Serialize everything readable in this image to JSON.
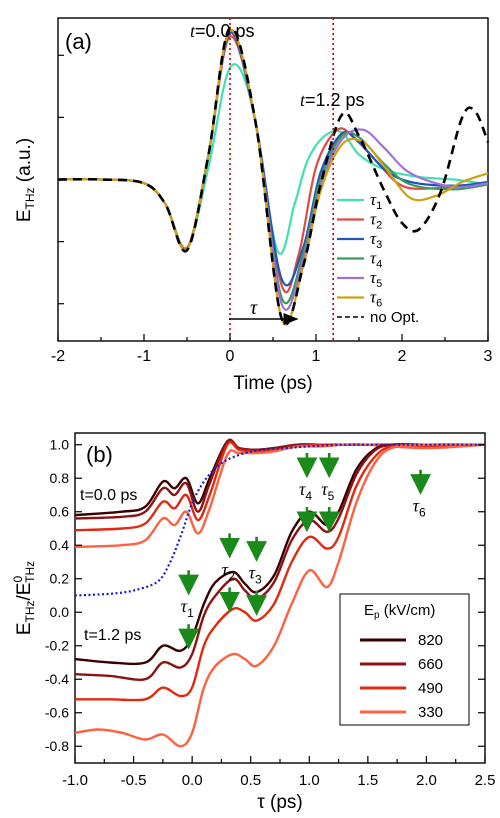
{
  "chart_data": [
    {
      "panel_label": "(a)",
      "type": "line",
      "ylabel_main": "E",
      "ylabel_sub": "THz",
      "ylabel_unit": " (a.u.)",
      "xlabel": "Time (ps)",
      "xlim": [
        -2,
        3
      ],
      "ylim": [
        -1.3,
        1.3
      ],
      "xticks": [
        "-2",
        "-1",
        "0",
        "1",
        "2",
        "3"
      ],
      "annotations": {
        "t0_prefix": "t",
        "t0_suffix": "=0.0 ps",
        "t1_prefix": "t",
        "t1_suffix": "=1.2 ps",
        "tau_arrow_label": "τ",
        "vlines": [
          0.0,
          1.2
        ]
      },
      "colors": {
        "tau1": "#40e0b0",
        "tau2": "#e04848",
        "tau3": "#2255b8",
        "tau4": "#3a9a5a",
        "tau5": "#a070d8",
        "tau6": "#d0a010",
        "noopt": "#000000",
        "vline": "#cc0000"
      },
      "legend": {
        "position": "right",
        "entries": [
          {
            "sym": "τ",
            "sub": "1",
            "color": "#40e0b0"
          },
          {
            "sym": "τ",
            "sub": "2",
            "color": "#e04848"
          },
          {
            "sym": "τ",
            "sub": "3",
            "color": "#2255b8"
          },
          {
            "sym": "τ",
            "sub": "4",
            "color": "#3a9a5a"
          },
          {
            "sym": "τ",
            "sub": "5",
            "color": "#a070d8"
          },
          {
            "sym": "τ",
            "sub": "6",
            "color": "#d0a010"
          },
          {
            "sym": "no Opt.",
            "sub": "",
            "color": "#000000",
            "dashed": true
          }
        ]
      },
      "series": [
        {
          "name": "τ1",
          "color": "#40e0b0",
          "x": [
            -2,
            -1.5,
            -1.0,
            -0.75,
            -0.5,
            -0.25,
            0.0,
            0.25,
            0.55,
            0.75,
            0.9,
            1.1,
            1.3,
            1.5,
            1.8,
            2.2,
            2.6,
            3.0
          ],
          "y": [
            0,
            0,
            -0.03,
            -0.2,
            -0.55,
            0.1,
            0.9,
            0.62,
            -0.57,
            -0.2,
            0.15,
            0.35,
            0.38,
            0.2,
            0.08,
            0.02,
            0.0,
            -0.04
          ]
        },
        {
          "name": "τ2",
          "color": "#e04848",
          "x": [
            -2,
            -1.5,
            -1.0,
            -0.75,
            -0.5,
            -0.25,
            0.0,
            0.3,
            0.6,
            0.8,
            1.0,
            1.25,
            1.45,
            1.7,
            2.0,
            2.4,
            3.0
          ],
          "y": [
            0,
            0,
            -0.03,
            -0.2,
            -0.55,
            0.2,
            1.15,
            0.45,
            -0.85,
            -0.6,
            0.1,
            0.4,
            0.33,
            0.15,
            -0.05,
            -0.07,
            -0.03
          ]
        },
        {
          "name": "τ3",
          "color": "#2255b8",
          "x": [
            -2,
            -1.5,
            -1.0,
            -0.75,
            -0.5,
            -0.25,
            0.0,
            0.3,
            0.6,
            0.85,
            1.05,
            1.3,
            1.5,
            1.8,
            2.1,
            2.6,
            3.0
          ],
          "y": [
            0,
            0,
            -0.03,
            -0.2,
            -0.56,
            0.2,
            1.18,
            0.45,
            -0.8,
            -0.55,
            0.05,
            0.37,
            0.3,
            0.08,
            -0.02,
            -0.05,
            -0.02
          ]
        },
        {
          "name": "τ4",
          "color": "#3a9a5a",
          "x": [
            -2,
            -1.5,
            -1.0,
            -0.75,
            -0.5,
            -0.25,
            0.0,
            0.3,
            0.6,
            0.85,
            1.05,
            1.3,
            1.5,
            1.8,
            2.1,
            2.6,
            3.0
          ],
          "y": [
            0,
            0,
            -0.03,
            -0.2,
            -0.56,
            0.2,
            1.2,
            0.45,
            -0.95,
            -0.6,
            0.0,
            0.35,
            0.34,
            0.12,
            -0.04,
            -0.08,
            -0.04
          ]
        },
        {
          "name": "τ5",
          "color": "#a070d8",
          "x": [
            -2,
            -1.5,
            -1.0,
            -0.75,
            -0.5,
            -0.25,
            0.0,
            0.3,
            0.6,
            0.85,
            1.05,
            1.3,
            1.55,
            1.8,
            2.1,
            2.6,
            3.0
          ],
          "y": [
            0,
            0,
            -0.03,
            -0.2,
            -0.56,
            0.2,
            1.2,
            0.45,
            -1.0,
            -0.65,
            -0.05,
            0.32,
            0.4,
            0.25,
            0.05,
            -0.06,
            -0.03
          ]
        },
        {
          "name": "τ6",
          "color": "#d0a010",
          "x": [
            -2,
            -1.5,
            -1.0,
            -0.75,
            -0.5,
            -0.25,
            0.0,
            0.3,
            0.6,
            0.85,
            1.05,
            1.3,
            1.55,
            1.8,
            2.1,
            2.4,
            2.7,
            3.0
          ],
          "y": [
            0,
            0,
            -0.03,
            -0.2,
            -0.56,
            0.2,
            1.2,
            0.45,
            -1.12,
            -0.7,
            -0.1,
            0.28,
            0.3,
            0.1,
            -0.15,
            -0.13,
            -0.02,
            0.05
          ]
        },
        {
          "name": "no Opt.",
          "color": "#000000",
          "dashed": true,
          "x": [
            -2,
            -1.5,
            -1.0,
            -0.75,
            -0.5,
            -0.25,
            0.0,
            0.3,
            0.6,
            0.85,
            1.05,
            1.3,
            1.5,
            1.8,
            2.0,
            2.2,
            2.45,
            2.7,
            2.85,
            3.0
          ],
          "y": [
            0,
            0,
            -0.03,
            -0.2,
            -0.57,
            0.2,
            1.22,
            0.45,
            -1.12,
            -0.7,
            -0.05,
            0.52,
            0.35,
            -0.1,
            -0.35,
            -0.4,
            -0.1,
            0.5,
            0.55,
            0.3
          ]
        }
      ]
    },
    {
      "panel_label": "(b)",
      "type": "line",
      "ylabel_main": "E",
      "ylabel_sub": "THz",
      "ylabel_sep": "/E",
      "ylabel_sup2": "0",
      "ylabel_sub2": "THz",
      "xlabel": "τ (ps)",
      "xlim": [
        -1.0,
        2.5
      ],
      "ylim": [
        -0.9,
        1.07
      ],
      "xticks": [
        "-1.0",
        "-0.5",
        "0.0",
        "0.5",
        "1.0",
        "1.5",
        "2.0",
        "2.5"
      ],
      "yticks": [
        "-0.8",
        "-0.6",
        "-0.4",
        "-0.2",
        "0.0",
        "0.2",
        "0.4",
        "0.6",
        "0.8",
        "1.0"
      ],
      "yticks_values": [
        -0.8,
        -0.6,
        -0.4,
        -0.2,
        0.0,
        0.2,
        0.4,
        0.6,
        0.8,
        1.0
      ],
      "annotations": {
        "t0_text": "t=0.0 ps",
        "t1_text": "t=1.2 ps",
        "tau_markers": [
          {
            "sym": "τ",
            "sub": "1",
            "x": -0.03,
            "y_text": -0.0
          },
          {
            "sym": "τ",
            "sub": "2",
            "x": 0.32,
            "y_text": 0.22
          },
          {
            "sym": "τ",
            "sub": "3",
            "x": 0.55,
            "y_text": 0.2
          },
          {
            "sym": "τ",
            "sub": "4",
            "x": 0.98,
            "y_text": 0.7
          },
          {
            "sym": "τ",
            "sub": "5",
            "x": 1.17,
            "y_text": 0.7
          },
          {
            "sym": "τ",
            "sub": "6",
            "x": 1.95,
            "y_text": 0.6
          }
        ],
        "arrow_color": "#1a8a1a",
        "dotted_color": "#1a1ad0"
      },
      "legend": {
        "title_main": "E",
        "title_sub": "p",
        "title_unit": " (kV/cm)",
        "position": "lower-right",
        "entries": [
          {
            "label": "820",
            "color": "#3a0000"
          },
          {
            "label": "660",
            "color": "#8a1414"
          },
          {
            "label": "490",
            "color": "#e02a10"
          },
          {
            "label": "330",
            "color": "#ff6040"
          }
        ]
      },
      "series": [
        {
          "name": "820",
          "group": "t=0.0 ps",
          "color": "#3a0000",
          "x": [
            -1.0,
            -0.6,
            -0.4,
            -0.25,
            -0.15,
            -0.05,
            0.05,
            0.15,
            0.3,
            0.4,
            0.55,
            0.7,
            0.9,
            1.1,
            1.3,
            1.5,
            2.0,
            2.5
          ],
          "y": [
            0.58,
            0.6,
            0.63,
            0.78,
            0.74,
            0.8,
            0.65,
            0.8,
            1.02,
            0.98,
            0.97,
            0.98,
            1.0,
            1.0,
            1.0,
            1.0,
            1.0,
            1.0
          ]
        },
        {
          "name": "660",
          "group": "t=0.0 ps",
          "color": "#8a1414",
          "x": [
            -1.0,
            -0.6,
            -0.4,
            -0.25,
            -0.15,
            -0.05,
            0.05,
            0.15,
            0.3,
            0.4,
            0.55,
            0.7,
            0.9,
            1.1,
            1.3,
            1.5,
            2.0,
            2.5
          ],
          "y": [
            0.56,
            0.57,
            0.6,
            0.74,
            0.7,
            0.77,
            0.6,
            0.77,
            1.02,
            0.98,
            0.97,
            0.98,
            1.0,
            1.0,
            1.0,
            1.0,
            1.0,
            1.0
          ]
        },
        {
          "name": "490",
          "group": "t=0.0 ps",
          "color": "#e02a10",
          "x": [
            -1.0,
            -0.6,
            -0.4,
            -0.25,
            -0.15,
            -0.05,
            0.05,
            0.15,
            0.3,
            0.4,
            0.55,
            0.7,
            0.9,
            1.1,
            1.3,
            1.5,
            2.0,
            2.5
          ],
          "y": [
            0.49,
            0.5,
            0.53,
            0.66,
            0.62,
            0.7,
            0.55,
            0.7,
            1.0,
            0.97,
            0.96,
            0.97,
            0.99,
            1.0,
            1.0,
            1.0,
            0.99,
            1.0
          ]
        },
        {
          "name": "330",
          "group": "t=0.0 ps",
          "color": "#ff6040",
          "x": [
            -1.0,
            -0.6,
            -0.4,
            -0.25,
            -0.15,
            -0.05,
            0.05,
            0.15,
            0.3,
            0.4,
            0.55,
            0.7,
            0.9,
            1.1,
            1.3,
            1.5,
            2.0,
            2.5
          ],
          "y": [
            0.39,
            0.4,
            0.43,
            0.56,
            0.52,
            0.6,
            0.47,
            0.62,
            0.94,
            0.95,
            0.95,
            0.96,
            0.99,
            0.99,
            1.0,
            1.0,
            0.98,
            1.0
          ]
        },
        {
          "name": "820",
          "group": "t=1.2 ps",
          "color": "#3a0000",
          "x": [
            -1.0,
            -0.7,
            -0.4,
            -0.25,
            -0.1,
            0.0,
            0.1,
            0.2,
            0.35,
            0.45,
            0.55,
            0.7,
            0.85,
            1.0,
            1.15,
            1.25,
            1.4,
            1.55,
            1.7,
            2.0,
            2.5
          ],
          "y": [
            -0.28,
            -0.3,
            -0.3,
            -0.2,
            -0.23,
            -0.15,
            0.05,
            0.18,
            0.24,
            0.17,
            0.12,
            0.22,
            0.48,
            0.6,
            0.52,
            0.6,
            0.85,
            0.97,
            1.0,
            1.0,
            1.0
          ]
        },
        {
          "name": "660",
          "group": "t=1.2 ps",
          "color": "#8a1414",
          "x": [
            -1.0,
            -0.7,
            -0.4,
            -0.25,
            -0.1,
            0.0,
            0.1,
            0.2,
            0.35,
            0.45,
            0.55,
            0.7,
            0.85,
            1.0,
            1.15,
            1.25,
            1.4,
            1.55,
            1.7,
            2.0,
            2.5
          ],
          "y": [
            -0.37,
            -0.38,
            -0.4,
            -0.3,
            -0.33,
            -0.25,
            -0.02,
            0.1,
            0.2,
            0.13,
            0.08,
            0.18,
            0.43,
            0.55,
            0.48,
            0.56,
            0.82,
            0.96,
            1.0,
            1.0,
            1.0
          ]
        },
        {
          "name": "490",
          "group": "t=1.2 ps",
          "color": "#e02a10",
          "x": [
            -1.0,
            -0.7,
            -0.4,
            -0.25,
            -0.1,
            0.0,
            0.1,
            0.2,
            0.35,
            0.45,
            0.55,
            0.7,
            0.85,
            1.0,
            1.15,
            1.25,
            1.4,
            1.55,
            1.7,
            2.0,
            2.5
          ],
          "y": [
            -0.52,
            -0.52,
            -0.52,
            -0.45,
            -0.5,
            -0.45,
            -0.2,
            -0.08,
            0.02,
            0.0,
            -0.05,
            0.05,
            0.3,
            0.45,
            0.38,
            0.45,
            0.75,
            0.92,
            0.99,
            1.0,
            1.0
          ]
        },
        {
          "name": "330",
          "group": "t=1.2 ps",
          "color": "#ff6040",
          "x": [
            -1.0,
            -0.8,
            -0.6,
            -0.4,
            -0.25,
            -0.1,
            0.0,
            0.1,
            0.2,
            0.35,
            0.45,
            0.55,
            0.7,
            0.85,
            1.0,
            1.15,
            1.25,
            1.4,
            1.55,
            1.7,
            2.0,
            2.5
          ],
          "y": [
            -0.72,
            -0.7,
            -0.72,
            -0.76,
            -0.73,
            -0.8,
            -0.72,
            -0.45,
            -0.32,
            -0.25,
            -0.28,
            -0.32,
            -0.2,
            0.05,
            0.25,
            0.15,
            0.3,
            0.65,
            0.88,
            0.98,
            1.0,
            1.0
          ]
        },
        {
          "name": "",
          "dotted": true,
          "color": "#1a1ad0",
          "x": [
            -1.0,
            -0.7,
            -0.5,
            -0.3,
            -0.2,
            -0.1,
            0.0,
            0.1,
            0.2,
            0.3,
            0.45,
            0.6,
            0.8,
            1.0,
            1.3,
            1.6,
            2.0,
            2.5
          ],
          "y": [
            0.1,
            0.11,
            0.13,
            0.18,
            0.28,
            0.45,
            0.65,
            0.78,
            0.86,
            0.91,
            0.95,
            0.97,
            0.98,
            0.99,
            1.0,
            1.0,
            1.0,
            1.0
          ]
        }
      ]
    }
  ]
}
